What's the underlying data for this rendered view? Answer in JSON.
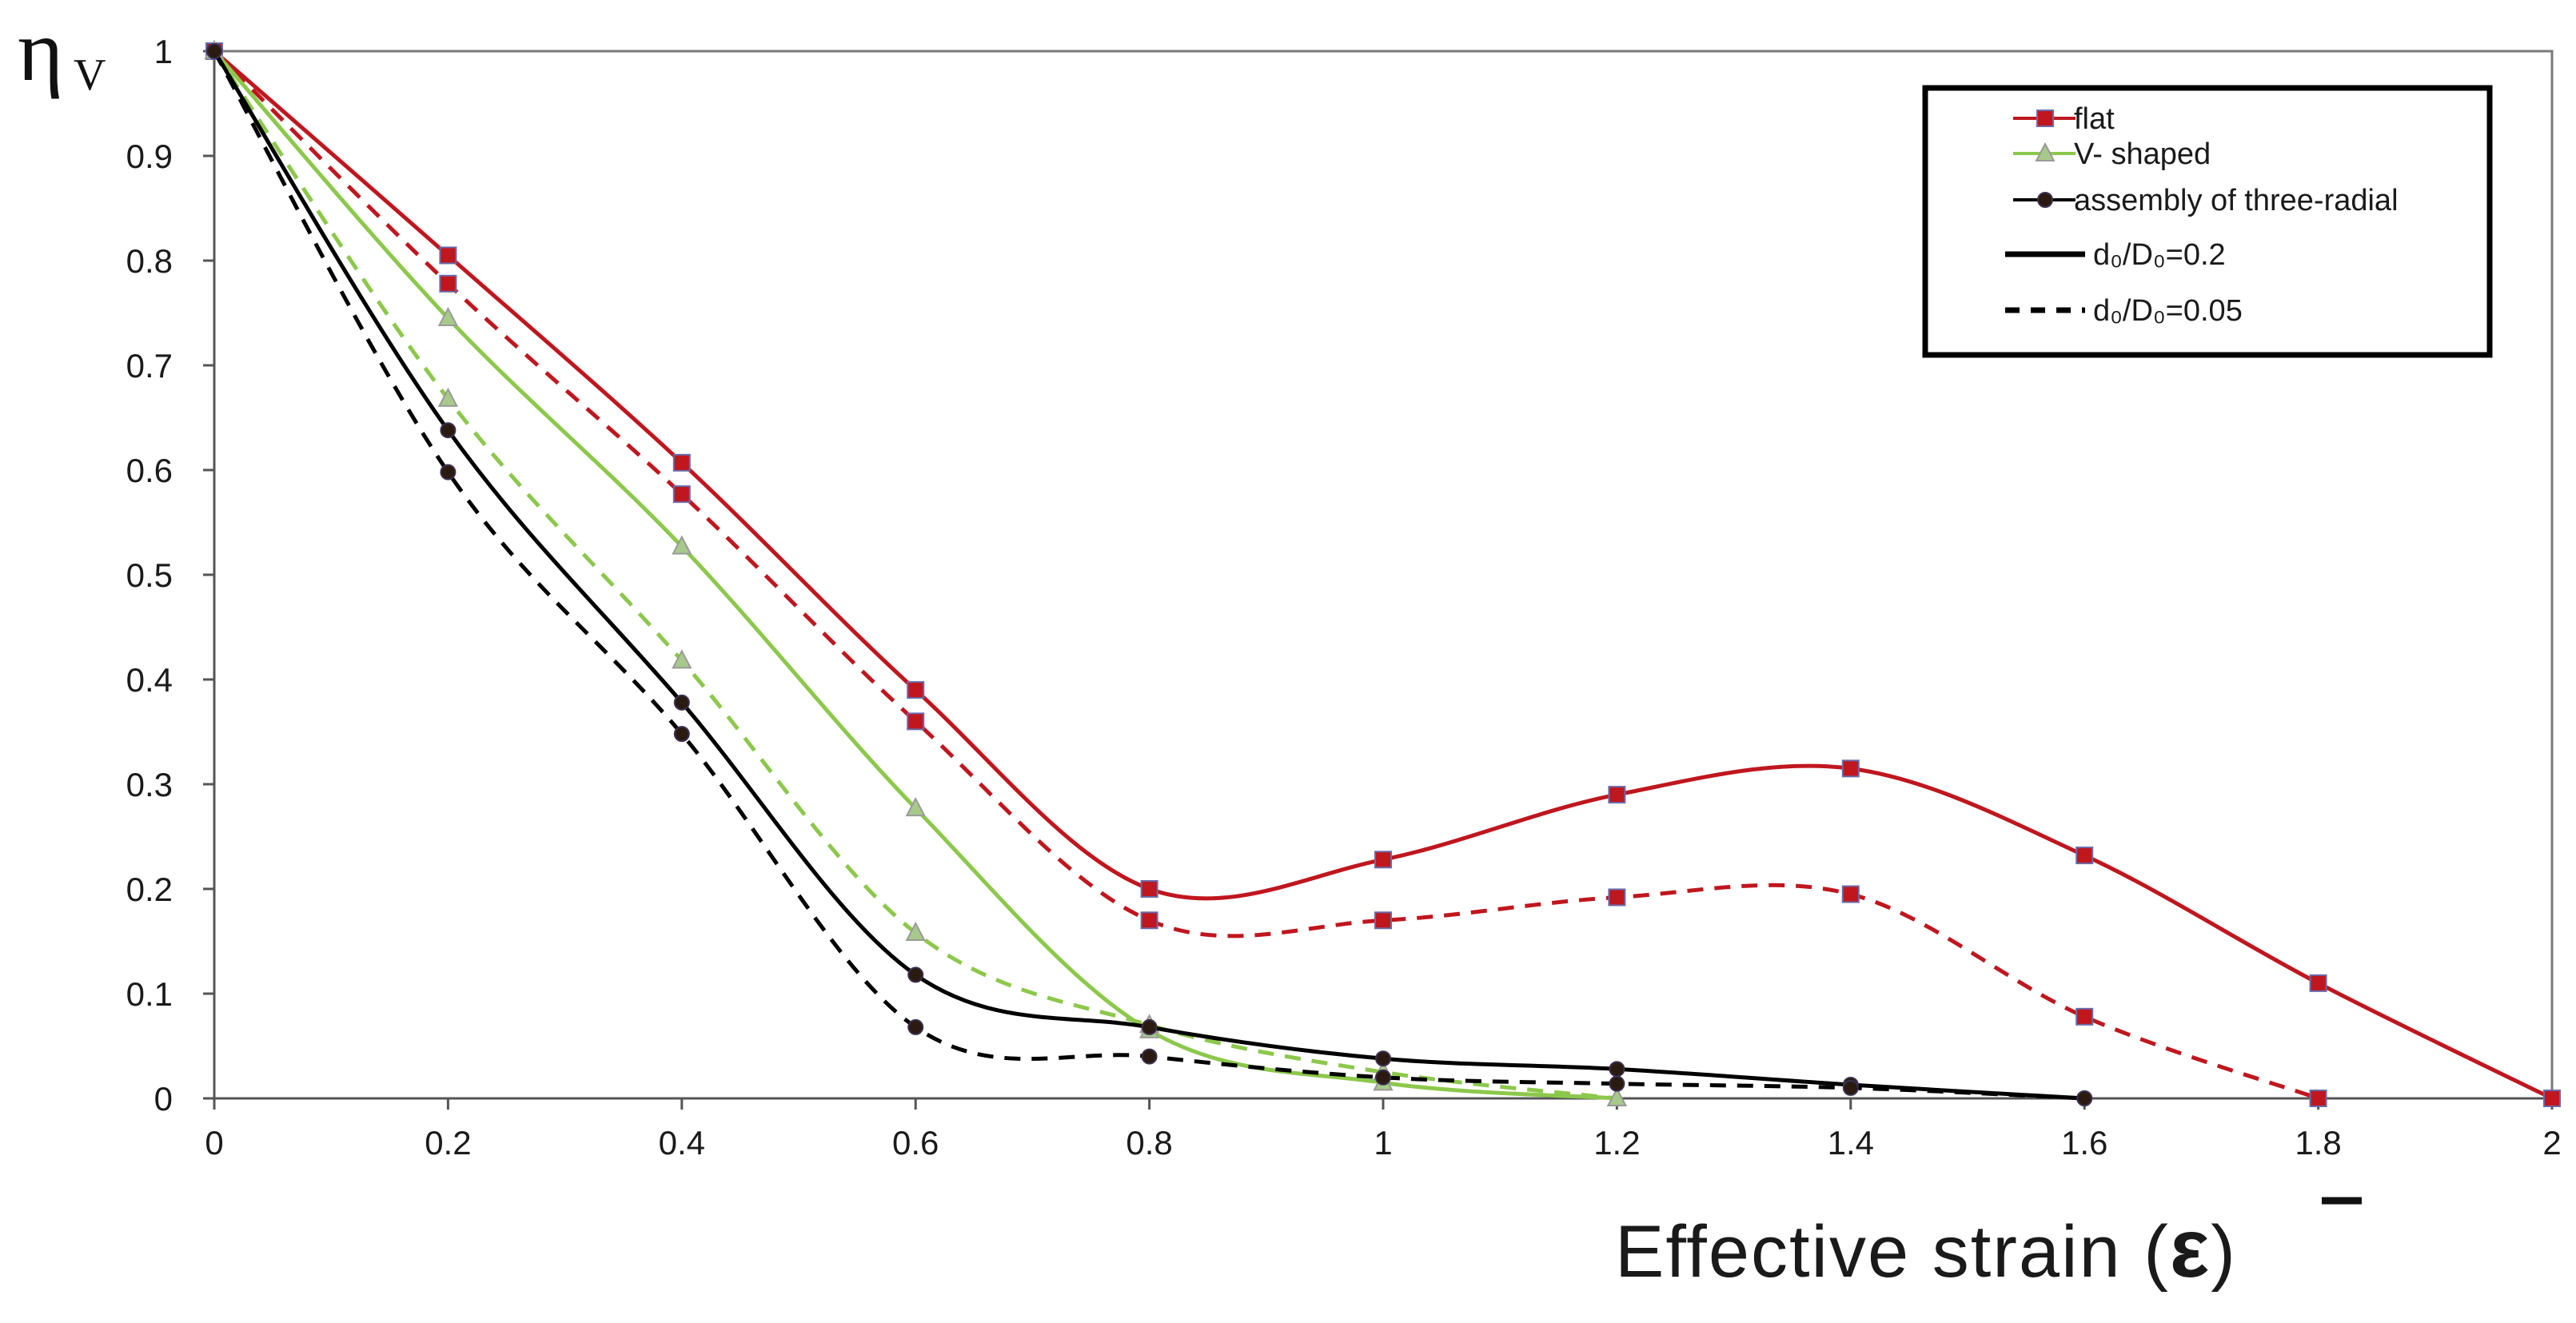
{
  "chart_data": {
    "type": "line",
    "title": "",
    "xlabel": "Effective strain (",
    "xlabel_symbol": "ε",
    "xlabel_close": ")",
    "ylabel": "η",
    "ylabel_sub": "V",
    "xlim": [
      0,
      2
    ],
    "ylim": [
      0,
      1
    ],
    "xticks": [
      "0",
      "0.2",
      "0.4",
      "0.6",
      "0.8",
      "1",
      "1.2",
      "1.4",
      "1.6",
      "1.8",
      "2"
    ],
    "yticks": [
      "0",
      "0.1",
      "0.2",
      "0.3",
      "0.4",
      "0.5",
      "0.6",
      "0.7",
      "0.8",
      "0.9",
      "1"
    ],
    "grid": false,
    "legend_position": "top-right",
    "legend": {
      "entries": [
        "flat",
        "V- shaped",
        "assembly of three-radial",
        "d₀/D₀=0.2",
        "d₀/D₀=0.05"
      ]
    },
    "series": [
      {
        "name": "flat d₀/D₀=0.2",
        "color": "#c0161e",
        "marker": "square",
        "dash": "solid",
        "x": [
          0,
          0.2,
          0.4,
          0.6,
          0.8,
          1.0,
          1.2,
          1.4,
          1.6,
          1.8,
          2.0
        ],
        "values": [
          1,
          0.805,
          0.607,
          0.39,
          0.2,
          0.228,
          0.29,
          0.315,
          0.232,
          0.11,
          0
        ]
      },
      {
        "name": "flat d₀/D₀=0.05",
        "color": "#c0161e",
        "marker": "square",
        "dash": "dashed",
        "x": [
          0,
          0.2,
          0.4,
          0.6,
          0.8,
          1.0,
          1.2,
          1.4,
          1.6,
          1.8
        ],
        "values": [
          1,
          0.778,
          0.577,
          0.36,
          0.17,
          0.17,
          0.192,
          0.195,
          0.078,
          0
        ]
      },
      {
        "name": "V- shaped d₀/D₀=0.2",
        "color": "#8cc84b",
        "marker": "triangle",
        "dash": "solid",
        "x": [
          0,
          0.2,
          0.4,
          0.6,
          0.8,
          1.0,
          1.2
        ],
        "values": [
          1,
          0.745,
          0.527,
          0.277,
          0.065,
          0.015,
          0
        ]
      },
      {
        "name": "V- shaped d₀/D₀=0.05",
        "color": "#8cc84b",
        "marker": "triangle",
        "dash": "dashed",
        "x": [
          0,
          0.2,
          0.4,
          0.6,
          0.8,
          1.0,
          1.2
        ],
        "values": [
          1,
          0.668,
          0.418,
          0.158,
          0.07,
          0.025,
          0
        ]
      },
      {
        "name": "assembly of three-radial d₀/D₀=0.2",
        "color": "#000000",
        "marker": "circle",
        "dash": "solid",
        "x": [
          0,
          0.2,
          0.4,
          0.6,
          0.8,
          1.0,
          1.2,
          1.4,
          1.6
        ],
        "values": [
          1,
          0.638,
          0.378,
          0.118,
          0.068,
          0.038,
          0.028,
          0.013,
          0
        ]
      },
      {
        "name": "assembly of three-radial d₀/D₀=0.05",
        "color": "#000000",
        "marker": "circle",
        "dash": "dashed",
        "x": [
          0,
          0.2,
          0.4,
          0.6,
          0.8,
          1.0,
          1.2,
          1.4,
          1.6
        ],
        "values": [
          1,
          0.598,
          0.348,
          0.068,
          0.04,
          0.02,
          0.014,
          0.01,
          0
        ]
      }
    ]
  }
}
